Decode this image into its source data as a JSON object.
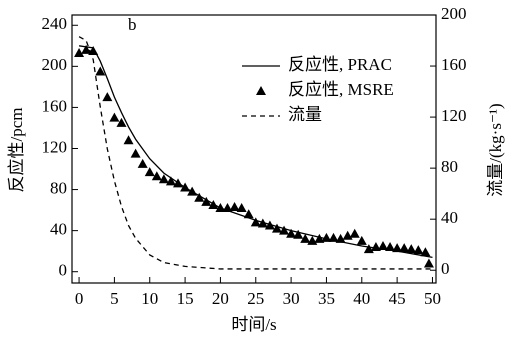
{
  "chart_data": {
    "type": "line",
    "panel_label": "b",
    "xlabel": "时间/s",
    "ylabel": "反应性/pcm",
    "y2label": "流量/(kg·s⁻¹)",
    "xlim": [
      -1,
      50.5
    ],
    "ylim": [
      -11,
      250
    ],
    "y2lim": [
      -10,
      200
    ],
    "xticks": [
      0,
      5,
      10,
      15,
      20,
      25,
      30,
      35,
      40,
      45,
      50
    ],
    "yticks": [
      0,
      40,
      80,
      120,
      160,
      200,
      240
    ],
    "y2ticks": [
      0,
      40,
      80,
      120,
      160,
      200
    ],
    "legend": "upper right",
    "series": [
      {
        "name": "反应性, PRAC",
        "color": "#000000",
        "style": "solid",
        "axis": "y",
        "x": [
          0,
          1,
          2,
          3,
          4,
          5,
          6,
          7,
          8,
          10,
          12,
          15,
          18,
          20,
          25,
          30,
          35,
          40,
          45,
          50
        ],
        "values": [
          220,
          219,
          218,
          205,
          188,
          170,
          155,
          141,
          129,
          110,
          96,
          82,
          70,
          62,
          50,
          40,
          32,
          25,
          20,
          14
        ]
      },
      {
        "name": "反应性, MSRE",
        "color": "#000000",
        "style": "marker",
        "marker": "triangle",
        "axis": "y",
        "x": [
          0,
          1,
          2,
          3,
          4,
          5,
          6,
          7,
          8,
          9,
          10,
          11,
          12,
          13,
          14,
          15,
          16,
          17,
          18,
          19,
          20,
          21,
          22,
          23,
          24,
          25,
          26,
          27,
          28,
          29,
          30,
          31,
          32,
          33,
          34,
          35,
          36,
          37,
          38,
          39,
          40,
          41,
          42,
          43,
          44,
          45,
          46,
          47,
          48,
          49,
          49.5
        ],
        "values": [
          213,
          216,
          215,
          195,
          170,
          150,
          145,
          128,
          115,
          105,
          97,
          93,
          90,
          88,
          86,
          82,
          78,
          72,
          68,
          65,
          62,
          62,
          63,
          62,
          56,
          48,
          47,
          45,
          42,
          40,
          37,
          36,
          32,
          30,
          32,
          33,
          33,
          32,
          35,
          37,
          30,
          22,
          24,
          25,
          24,
          23,
          23,
          22,
          21,
          19,
          8
        ]
      },
      {
        "name": "流量",
        "color": "#000000",
        "style": "dashed",
        "axis": "y2",
        "x": [
          0,
          1,
          2,
          3,
          4,
          5,
          6,
          7,
          8,
          10,
          12,
          15,
          20,
          25,
          30,
          35,
          40,
          45,
          50
        ],
        "values": [
          183,
          180,
          165,
          128,
          95,
          70,
          50,
          35,
          25,
          12,
          6,
          3,
          1,
          1,
          1,
          1,
          1,
          1,
          1
        ]
      }
    ]
  }
}
